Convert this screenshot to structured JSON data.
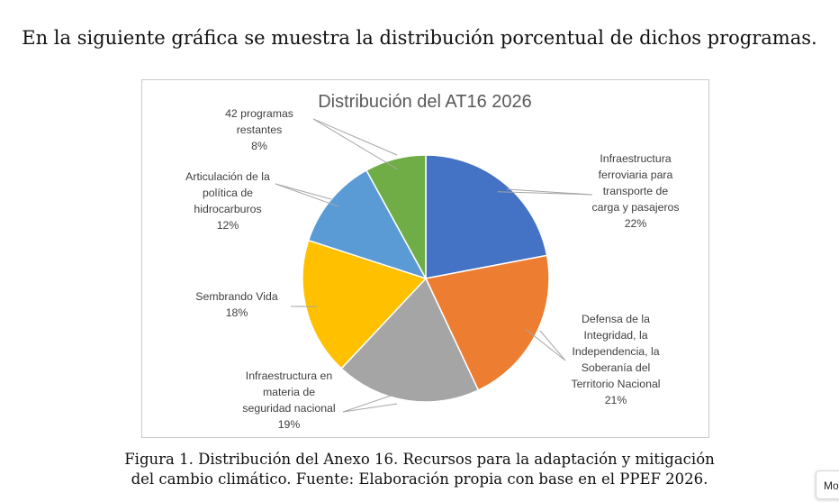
{
  "intro_text": "En la siguiente gráfica se muestra la distribución porcentual de dichos programas.",
  "caption_lines": [
    "Figura 1. Distribución del Anexo 16. Recursos para la adaptación y mitigación",
    "del cambio climático. Fuente: Elaboración propia con base en el PPEF 2026."
  ],
  "mode_button": "Mo",
  "chart_data": {
    "type": "pie",
    "title": "Distribución del AT16 2026",
    "start_angle_deg": 0,
    "direction": "clockwise",
    "slices": [
      {
        "label_lines": [
          "Infraestructura",
          "ferroviaria para",
          "transporte de",
          "carga y pasajeros"
        ],
        "value": 22,
        "pct_label": "22%",
        "color": "#4472C4"
      },
      {
        "label_lines": [
          "Defensa de la",
          "Integridad, la",
          "Independencia, la",
          "Soberanía del",
          "Territorio Nacional"
        ],
        "value": 21,
        "pct_label": "21%",
        "color": "#ED7D31"
      },
      {
        "label_lines": [
          "Infraestructura en",
          "materia de",
          "seguridad nacional"
        ],
        "value": 19,
        "pct_label": "19%",
        "color": "#A5A5A5"
      },
      {
        "label_lines": [
          "Sembrando Vida"
        ],
        "value": 18,
        "pct_label": "18%",
        "color": "#FFC000"
      },
      {
        "label_lines": [
          "Articulación de la",
          "política de",
          "hidrocarburos"
        ],
        "value": 12,
        "pct_label": "12%",
        "color": "#5B9BD5"
      },
      {
        "label_lines": [
          "42 programas",
          "restantes"
        ],
        "value": 8,
        "pct_label": "8%",
        "color": "#70AD47"
      }
    ]
  }
}
